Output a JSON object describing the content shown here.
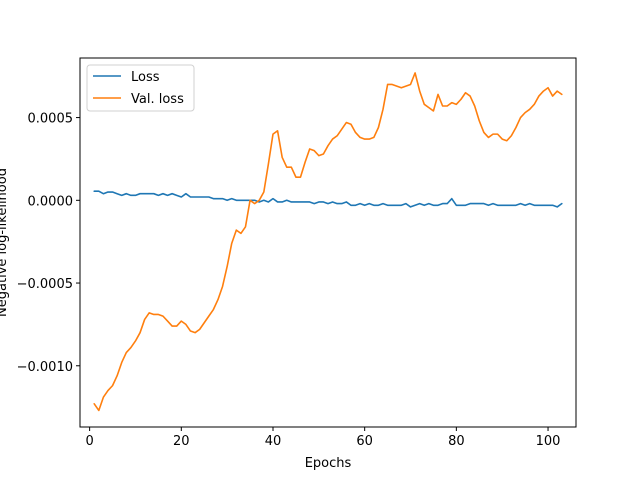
{
  "chart_data": {
    "type": "line",
    "title": "",
    "xlabel": "Epochs",
    "ylabel": "Negative log-likelihood",
    "xlim": [
      -2.1,
      106.1
    ],
    "ylim": [
      -0.00137,
      0.00086
    ],
    "xticks": [
      0,
      20,
      40,
      60,
      80,
      100
    ],
    "yticks": [
      -0.001,
      -0.0005,
      0.0,
      0.0005
    ],
    "ytick_labels": [
      "−0.0010",
      "−0.0005",
      "0.0000",
      "0.0005"
    ],
    "grid": false,
    "legend_position": "top-left",
    "series": [
      {
        "name": "Loss",
        "color": "#1f77b4",
        "x": [
          1,
          2,
          3,
          4,
          5,
          6,
          7,
          8,
          9,
          10,
          11,
          12,
          13,
          14,
          15,
          16,
          17,
          18,
          19,
          20,
          21,
          22,
          23,
          24,
          25,
          26,
          27,
          28,
          29,
          30,
          31,
          32,
          33,
          34,
          35,
          36,
          37,
          38,
          39,
          40,
          41,
          42,
          43,
          44,
          45,
          46,
          47,
          48,
          49,
          50,
          51,
          52,
          53,
          54,
          55,
          56,
          57,
          58,
          59,
          60,
          61,
          62,
          63,
          64,
          65,
          66,
          67,
          68,
          69,
          70,
          71,
          72,
          73,
          74,
          75,
          76,
          77,
          78,
          79,
          80,
          81,
          82,
          83,
          84,
          85,
          86,
          87,
          88,
          89,
          90,
          91,
          92,
          93,
          94,
          95,
          96,
          97,
          98,
          99,
          100,
          101,
          102,
          103
        ],
        "y": [
          5.5e-05,
          5.5e-05,
          4e-05,
          5e-05,
          5e-05,
          4e-05,
          3e-05,
          4e-05,
          3e-05,
          3e-05,
          4e-05,
          4e-05,
          4e-05,
          4e-05,
          3e-05,
          4e-05,
          3e-05,
          4e-05,
          3e-05,
          2e-05,
          4e-05,
          2e-05,
          2e-05,
          2e-05,
          2e-05,
          2e-05,
          1e-05,
          1e-05,
          1e-05,
          0.0,
          1e-05,
          0.0,
          0.0,
          0.0,
          0.0,
          0.0,
          -1e-05,
          0.0,
          -1e-05,
          1e-05,
          -1e-05,
          -1e-05,
          0.0,
          -1e-05,
          -1e-05,
          -1e-05,
          -1e-05,
          -1e-05,
          -2e-05,
          -1e-05,
          -1e-05,
          -2e-05,
          -1e-05,
          -2e-05,
          -2e-05,
          -1e-05,
          -3e-05,
          -3e-05,
          -2e-05,
          -3e-05,
          -2e-05,
          -3e-05,
          -3e-05,
          -2e-05,
          -3e-05,
          -3e-05,
          -3e-05,
          -3e-05,
          -2e-05,
          -4e-05,
          -3e-05,
          -2e-05,
          -3e-05,
          -2e-05,
          -3e-05,
          -3e-05,
          -2e-05,
          -2e-05,
          1e-05,
          -3e-05,
          -3e-05,
          -3e-05,
          -2e-05,
          -2e-05,
          -2e-05,
          -2e-05,
          -3e-05,
          -2e-05,
          -3e-05,
          -3e-05,
          -3e-05,
          -3e-05,
          -3e-05,
          -2e-05,
          -3e-05,
          -2e-05,
          -3e-05,
          -3e-05,
          -3e-05,
          -3e-05,
          -3e-05,
          -4e-05,
          -2e-05
        ]
      },
      {
        "name": "Val. loss",
        "color": "#ff7f0e",
        "x": [
          1,
          2,
          3,
          4,
          5,
          6,
          7,
          8,
          9,
          10,
          11,
          12,
          13,
          14,
          15,
          16,
          17,
          18,
          19,
          20,
          21,
          22,
          23,
          24,
          25,
          26,
          27,
          28,
          29,
          30,
          31,
          32,
          33,
          34,
          35,
          36,
          37,
          38,
          39,
          40,
          41,
          42,
          43,
          44,
          45,
          46,
          47,
          48,
          49,
          50,
          51,
          52,
          53,
          54,
          55,
          56,
          57,
          58,
          59,
          60,
          61,
          62,
          63,
          64,
          65,
          66,
          67,
          68,
          69,
          70,
          71,
          72,
          73,
          74,
          75,
          76,
          77,
          78,
          79,
          80,
          81,
          82,
          83,
          84,
          85,
          86,
          87,
          88,
          89,
          90,
          91,
          92,
          93,
          94,
          95,
          96,
          97,
          98,
          99,
          100,
          101,
          102,
          103
        ],
        "y": [
          -0.00123,
          -0.00127,
          -0.00119,
          -0.00115,
          -0.00112,
          -0.00106,
          -0.00098,
          -0.00092,
          -0.00089,
          -0.00085,
          -0.0008,
          -0.00072,
          -0.00068,
          -0.00069,
          -0.00069,
          -0.0007,
          -0.00073,
          -0.00076,
          -0.00076,
          -0.00073,
          -0.00075,
          -0.00079,
          -0.0008,
          -0.00078,
          -0.00074,
          -0.0007,
          -0.00066,
          -0.0006,
          -0.00052,
          -0.0004,
          -0.00026,
          -0.00018,
          -0.0002,
          -0.00016,
          0.0,
          -2e-05,
          0.0,
          5e-05,
          0.00022,
          0.0004,
          0.00042,
          0.00026,
          0.0002,
          0.0002,
          0.00014,
          0.00014,
          0.00023,
          0.00031,
          0.0003,
          0.00027,
          0.00028,
          0.00033,
          0.00037,
          0.00039,
          0.00043,
          0.00047,
          0.00046,
          0.00041,
          0.00038,
          0.00037,
          0.00037,
          0.00038,
          0.00044,
          0.00055,
          0.0007,
          0.0007,
          0.00069,
          0.00068,
          0.00069,
          0.0007,
          0.00077,
          0.00066,
          0.00058,
          0.00056,
          0.00054,
          0.00064,
          0.00057,
          0.00057,
          0.00059,
          0.00058,
          0.00061,
          0.00065,
          0.00063,
          0.00057,
          0.00048,
          0.00041,
          0.00038,
          0.0004,
          0.0004,
          0.00037,
          0.00036,
          0.00039,
          0.00044,
          0.0005,
          0.00053,
          0.00055,
          0.00058,
          0.00063,
          0.00066,
          0.00068,
          0.00063,
          0.00066,
          0.00064
        ]
      }
    ]
  }
}
